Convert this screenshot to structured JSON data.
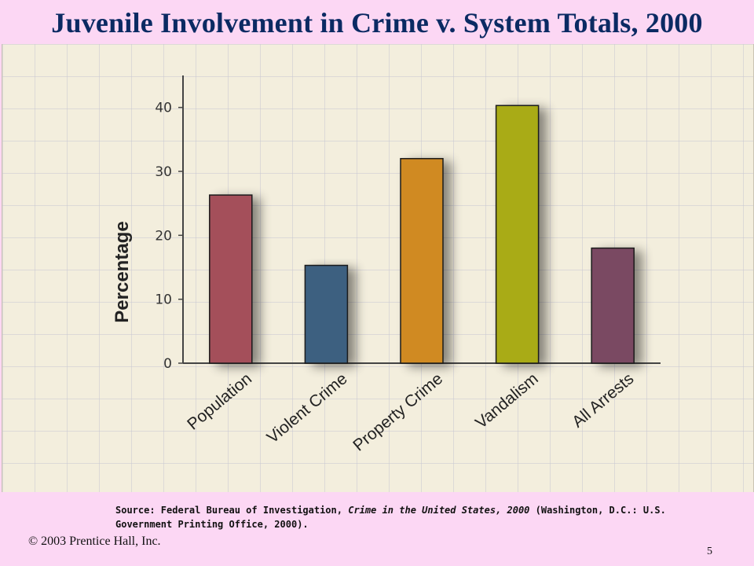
{
  "title": "Juvenile Involvement in Crime v. System Totals, 2000",
  "chart_data": {
    "type": "bar",
    "title": "",
    "xlabel": "",
    "ylabel": "Percentage",
    "categories": [
      "Population",
      "Violent Crime",
      "Property Crime",
      "Vandalism",
      "All Arrests"
    ],
    "values": [
      26.3,
      15.3,
      32,
      40.3,
      18
    ],
    "colors": [
      "#a4505a",
      "#3c6080",
      "#d08a24",
      "#a9ab16",
      "#7a4962"
    ],
    "ylim": [
      0,
      45
    ],
    "yticks": [
      0,
      10,
      20,
      30,
      40
    ],
    "ytick_labels": [
      "0",
      "10",
      "20",
      "30",
      "40"
    ],
    "grid": true,
    "legend": "none"
  },
  "source": {
    "prefix": "Source: Federal Bureau of Investigation, ",
    "italic": "Crime in the United States, 2000",
    "suffix": " (Washington, D.C.: U.S. Government Printing Office, 2000)."
  },
  "copyright": "© 2003 Prentice Hall, Inc.",
  "page_number": "5"
}
